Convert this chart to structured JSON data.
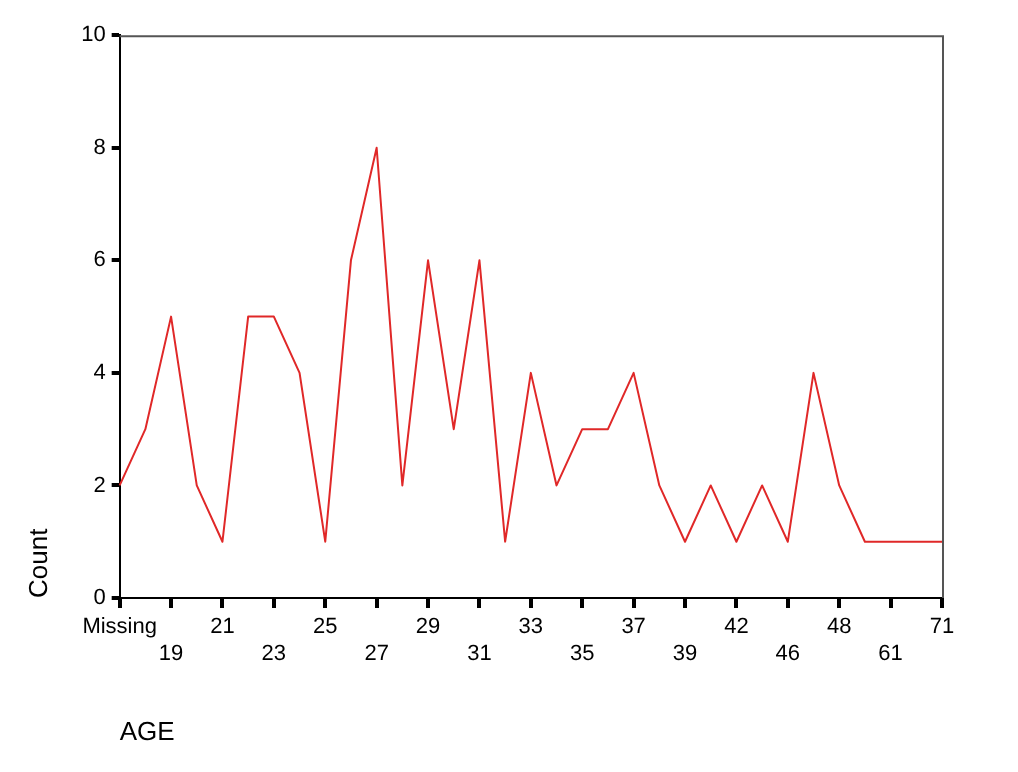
{
  "chart_data": {
    "type": "line",
    "xlabel": "AGE",
    "ylabel": "Count",
    "categories": [
      "Missing",
      null,
      "19",
      null,
      "21",
      null,
      "23",
      null,
      "25",
      null,
      "27",
      null,
      "29",
      null,
      "31",
      null,
      "33",
      null,
      "35",
      null,
      "37",
      null,
      "39",
      null,
      "42",
      null,
      "46",
      null,
      "48",
      null,
      "61",
      null,
      "71"
    ],
    "series": [
      {
        "color": "#e02828",
        "values": [
          2,
          3,
          5,
          2,
          1,
          5,
          5,
          4,
          1,
          6,
          8,
          2,
          6,
          3,
          6,
          1,
          4,
          2,
          3,
          3,
          4,
          2,
          1,
          2,
          1,
          2,
          1,
          4,
          2,
          1,
          1,
          1,
          1
        ]
      }
    ],
    "ylim": [
      0,
      10
    ],
    "yticks": [
      0,
      2,
      4,
      6,
      8,
      10
    ],
    "grid": false,
    "legend": false,
    "marker": "none",
    "line_style": "solid"
  }
}
